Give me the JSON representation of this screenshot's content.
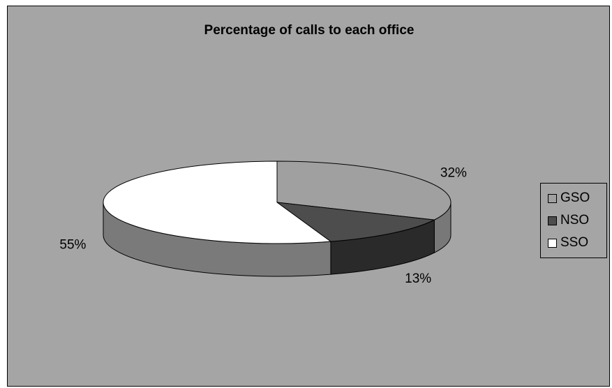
{
  "chart_data": {
    "type": "pie",
    "title": "Percentage of calls to each office",
    "categories": [
      "GSO",
      "NSO",
      "SSO"
    ],
    "values": [
      32,
      13,
      55
    ],
    "labels": [
      "32%",
      "13%",
      "55%"
    ],
    "colors": [
      "#a0a0a0",
      "#4d4d4d",
      "#ffffff"
    ],
    "legend": "right",
    "style": "3d"
  }
}
